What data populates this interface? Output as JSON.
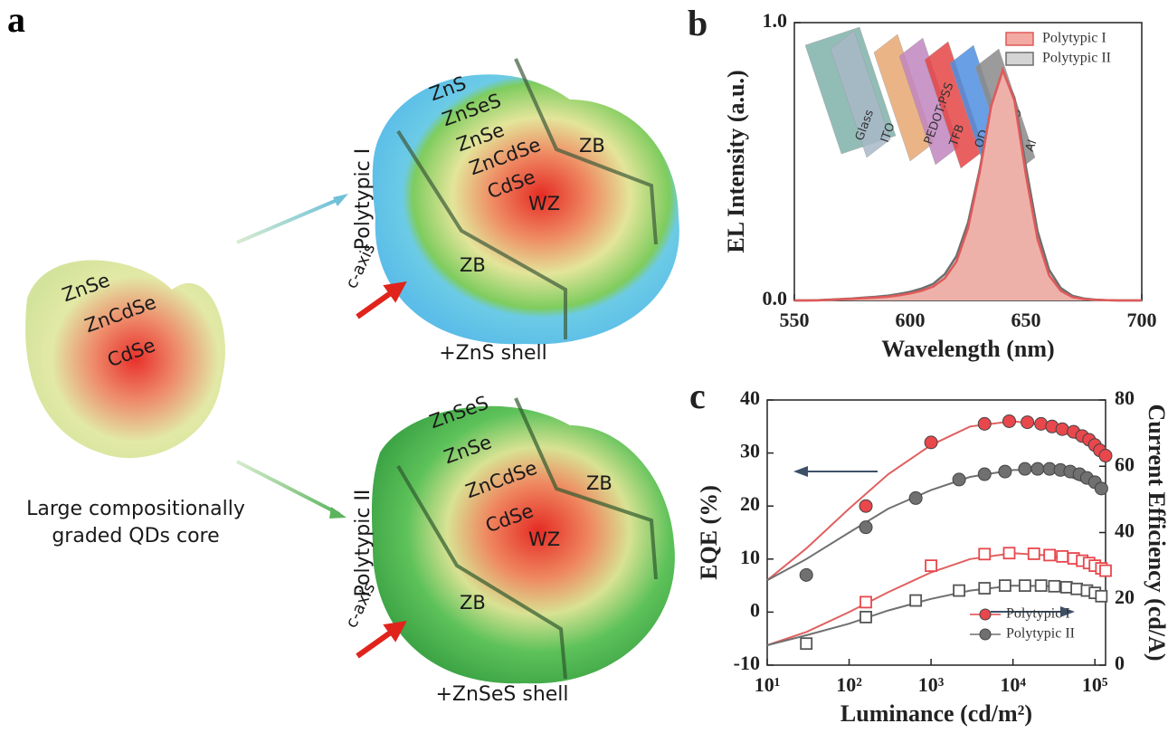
{
  "panels": {
    "a": {
      "label": "a",
      "core": {
        "layers": [
          "ZnSe",
          "ZnCdSe",
          "CdSe"
        ],
        "caption": [
          "Large compositionally",
          "graded  QDs core"
        ]
      },
      "top": {
        "name": "Polytypic I",
        "layers": [
          "ZnS",
          "ZnSeS",
          "ZnSe",
          "ZnCdSe",
          "CdSe"
        ],
        "phases": [
          "WZ",
          "ZB",
          "ZB"
        ],
        "axis": "c-axis",
        "caption": "+ZnS shell"
      },
      "bottom": {
        "name": "Polytypic II",
        "layers": [
          "ZnSeS",
          "ZnSe",
          "ZnCdSe",
          "CdSe"
        ],
        "phases": [
          "WZ",
          "ZB",
          "ZB"
        ],
        "axis": "c-axis",
        "caption": "+ZnSeS shell"
      }
    }
  },
  "chart_data": [
    {
      "type": "area",
      "label": "b",
      "xlabel": "Wavelength (nm)",
      "ylabel": "EL Intensity (a.u.)",
      "x": [
        550,
        555,
        560,
        565,
        570,
        575,
        580,
        585,
        590,
        595,
        600,
        605,
        610,
        615,
        620,
        625,
        630,
        635,
        640,
        645,
        650,
        655,
        660,
        665,
        670,
        675,
        680,
        685,
        690,
        695,
        700
      ],
      "series": [
        {
          "name": "Polytypic I",
          "color": "#e05a5a",
          "fill": "#f2aaa2",
          "values": [
            0,
            0,
            0,
            0.002,
            0.004,
            0.006,
            0.008,
            0.01,
            0.013,
            0.018,
            0.025,
            0.035,
            0.05,
            0.08,
            0.14,
            0.26,
            0.46,
            0.7,
            0.83,
            0.72,
            0.45,
            0.22,
            0.09,
            0.035,
            0.012,
            0.005,
            0.002,
            0.001,
            0,
            0,
            0
          ]
        },
        {
          "name": "Polytypic II",
          "color": "#6e6e6e",
          "fill": "#d4d4d4",
          "values": [
            0,
            0,
            0.001,
            0.003,
            0.005,
            0.007,
            0.01,
            0.013,
            0.017,
            0.023,
            0.031,
            0.043,
            0.06,
            0.095,
            0.16,
            0.28,
            0.47,
            0.7,
            0.82,
            0.73,
            0.48,
            0.25,
            0.11,
            0.045,
            0.017,
            0.007,
            0.003,
            0.001,
            0,
            0,
            0
          ]
        }
      ],
      "xlim": [
        550,
        700
      ],
      "ylim": [
        0,
        1
      ],
      "xticks": [
        550,
        600,
        650,
        700
      ],
      "yticks": [
        {
          "value": 0,
          "label": "0.0"
        },
        {
          "value": 1,
          "label": "1.0"
        }
      ],
      "legend": "upper right",
      "inset": {
        "layers": [
          "Glass",
          "ITO",
          "PEDOT:PSS",
          "TFB",
          "QD",
          "ZnMgO",
          "Al"
        ]
      }
    },
    {
      "type": "scatter",
      "label": "c",
      "xlabel": "Luminance (cd/m²)",
      "ylabel": "EQE (%)",
      "y2label": "Current Efficiency (cd/A)",
      "xscale": "log",
      "xlim": [
        10,
        135000
      ],
      "ylim": [
        -10,
        40
      ],
      "y2lim": [
        0,
        80
      ],
      "xticks": [
        {
          "value": 10,
          "label": "10¹"
        },
        {
          "value": 100,
          "label": "10²"
        },
        {
          "value": 1000,
          "label": "10³"
        },
        {
          "value": 10000,
          "label": "10⁴"
        },
        {
          "value": 100000,
          "label": "10⁵"
        }
      ],
      "yticks": [
        -10,
        0,
        10,
        20,
        30,
        40
      ],
      "y2ticks": [
        0,
        20,
        40,
        60,
        80
      ],
      "legend": "lower right",
      "series": [
        {
          "name": "Polytypic I",
          "color": "#e8474c",
          "marker": "circle",
          "x": [
            160,
            1000,
            4500,
            9000,
            15000,
            22000,
            30000,
            40000,
            55000,
            70000,
            85000,
            100000,
            115000,
            135000
          ],
          "values": [
            20,
            32,
            35.5,
            36,
            35.8,
            35.5,
            35,
            34.5,
            34,
            33.2,
            32.5,
            31.5,
            30.5,
            29.5
          ]
        },
        {
          "name": "Polytypic II",
          "color": "#707070",
          "marker": "circle",
          "x": [
            30,
            160,
            650,
            2200,
            4500,
            8000,
            14000,
            20000,
            28000,
            38000,
            50000,
            65000,
            80000,
            100000,
            120000
          ],
          "values": [
            7,
            16,
            21.5,
            25,
            26,
            26.5,
            27,
            27,
            27,
            26.8,
            26.5,
            26,
            25.3,
            24.5,
            23.3
          ]
        },
        {
          "color": "#e8474c",
          "marker": "square",
          "axis": "y2",
          "x": [
            160,
            1000,
            4500,
            9000,
            18000,
            28000,
            40000,
            55000,
            70000,
            85000,
            100000,
            120000,
            135000
          ],
          "values": [
            19,
            30,
            33.5,
            33.8,
            33.6,
            33.2,
            32.8,
            32.2,
            31.5,
            30.8,
            30,
            29.2,
            28.5
          ]
        },
        {
          "color": "#555555",
          "marker": "square",
          "axis": "y2",
          "x": [
            30,
            160,
            650,
            2200,
            4500,
            8000,
            14000,
            22000,
            32000,
            45000,
            60000,
            80000,
            100000,
            120000
          ],
          "values": [
            6.5,
            14.5,
            19.5,
            22.5,
            23.2,
            24,
            24,
            24,
            23.8,
            23.5,
            23,
            22.5,
            21.8,
            20.8
          ]
        },
        {
          "color": "#e06060",
          "marker": "none",
          "x": [
            10,
            30,
            100,
            300,
            1000,
            3000,
            10000,
            30000,
            135000
          ],
          "values": [
            6,
            12,
            19.5,
            26,
            31.5,
            35,
            36,
            35,
            30
          ]
        },
        {
          "color": "#707070",
          "marker": "none",
          "x": [
            10,
            30,
            100,
            300,
            1000,
            3000,
            10000,
            30000,
            135000
          ],
          "values": [
            6,
            10,
            15,
            19.5,
            23,
            25.5,
            26.8,
            26.8,
            23
          ]
        },
        {
          "color": "#e06060",
          "marker": "none",
          "axis": "y2",
          "x": [
            10,
            30,
            100,
            300,
            1000,
            3000,
            10000,
            30000,
            135000
          ],
          "values": [
            6,
            10,
            16,
            22,
            28,
            32,
            33.8,
            33,
            28.5
          ]
        },
        {
          "color": "#707070",
          "marker": "none",
          "axis": "y2",
          "x": [
            10,
            30,
            100,
            300,
            1000,
            3000,
            10000,
            30000,
            135000
          ],
          "values": [
            6,
            9,
            12.5,
            16.5,
            20,
            22.5,
            24,
            23.8,
            20.8
          ]
        }
      ]
    }
  ]
}
